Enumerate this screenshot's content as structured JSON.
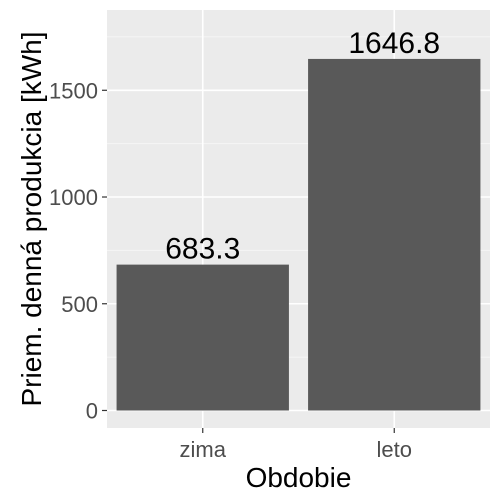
{
  "chart_data": {
    "type": "bar",
    "categories": [
      "zima",
      "leto"
    ],
    "values": [
      683.3,
      1646.8
    ],
    "data_labels": [
      "683.3",
      "1646.8"
    ],
    "xlabel": "Obdobie",
    "ylabel": "Priem. denná produkcia [kWh]",
    "ylim": [
      -82,
      1876
    ],
    "yticks": [
      0,
      500,
      1000,
      1500
    ],
    "ytick_labels": [
      "0",
      "500",
      "1000",
      "1500"
    ],
    "grid": true,
    "legend": "none"
  },
  "colors": {
    "panel_background": "#ebebeb",
    "grid_major": "#ffffff",
    "grid_minor": "#f5f5f5",
    "bar_fill": "#595959",
    "tick_mark": "#333333"
  }
}
